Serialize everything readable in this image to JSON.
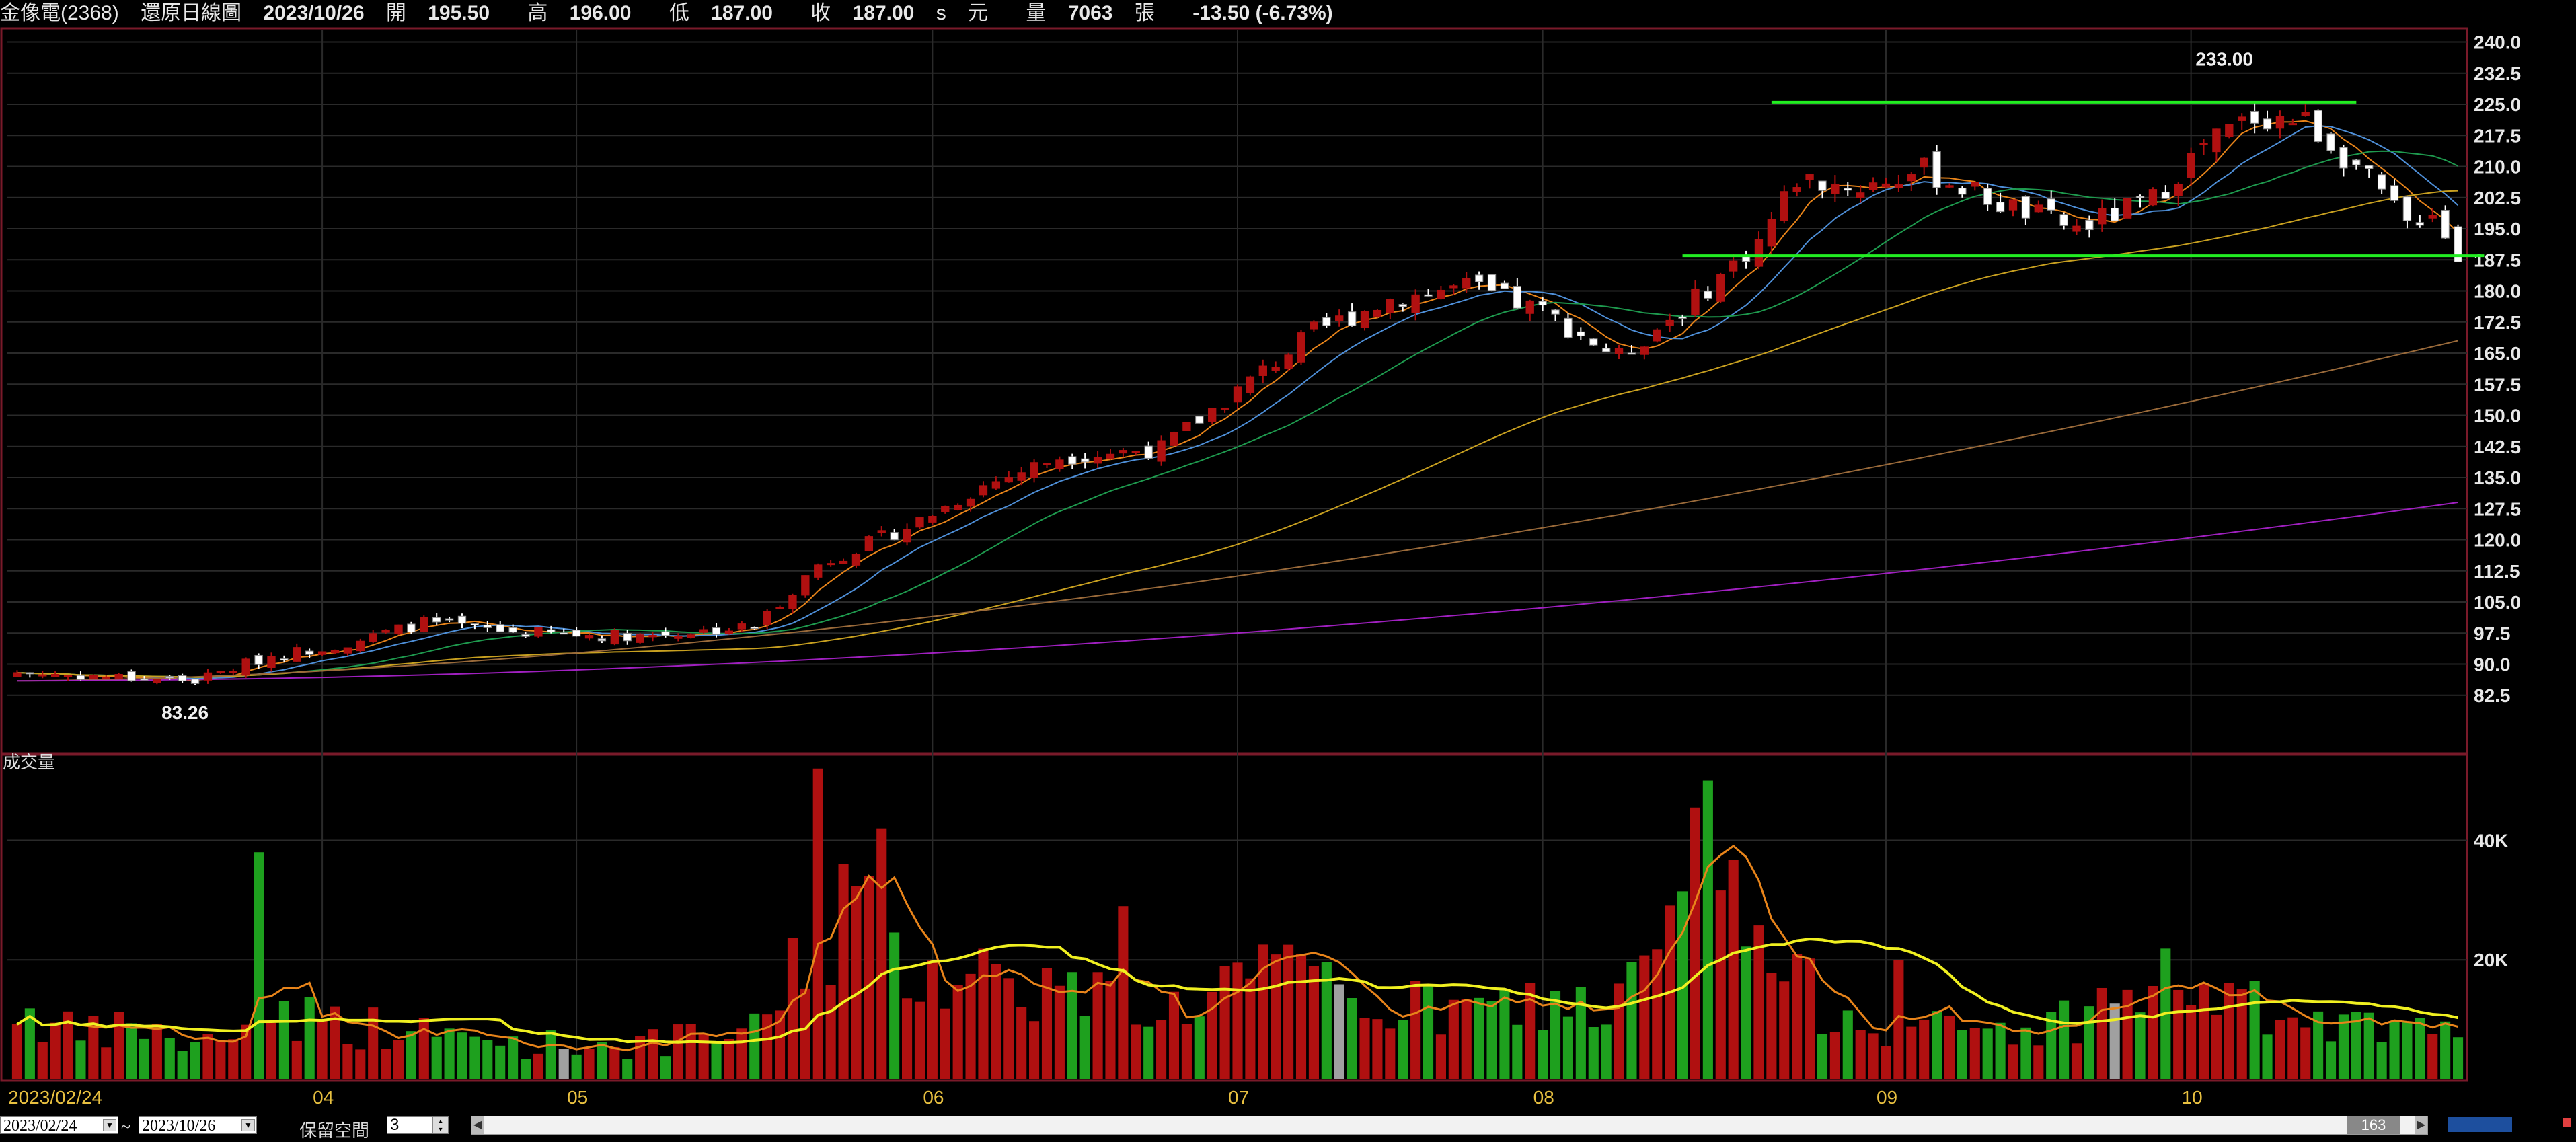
{
  "header": {
    "stock": "金像電(2368)",
    "chart_name": "還原日線圖",
    "date": "2023/10/26",
    "open_label": "開",
    "open": "195.50",
    "high_label": "高",
    "high": "196.00",
    "low_label": "低",
    "low": "187.00",
    "close_label": "收",
    "close": "187.00",
    "close_flag": "s",
    "unit": "元",
    "volume_label": "量",
    "volume": "7063",
    "volume_unit": "張",
    "change": "-13.50 (-6.73%)"
  },
  "colors": {
    "up": "#b01010",
    "down": "#ffffff",
    "vol_up": "#b01010",
    "vol_down": "#1ea01e",
    "vol_flat": "#a0a0a0",
    "grid": "#2a2a2a",
    "frame": "#7a1a2a",
    "ma5": "#e8841a",
    "ma10": "#4e8fd8",
    "ma20": "#1e9a4e",
    "ma60": "#c8a020",
    "ma120": "#9a6a3a",
    "ma240": "#a020c0",
    "support": "#22ee22",
    "vol_ma5": "#e8841a",
    "vol_ma20": "#f0f020"
  },
  "chart_data": {
    "type": "candlestick",
    "price_axis": {
      "ticks": [
        82.5,
        90.0,
        97.5,
        105.0,
        112.5,
        120.0,
        127.5,
        135.0,
        142.5,
        150.0,
        157.5,
        165.0,
        172.5,
        180.0,
        187.5,
        195.0,
        202.5,
        210.0,
        217.5,
        225.0,
        232.5,
        240.0
      ],
      "range": [
        75,
        243
      ]
    },
    "volume_axis": {
      "ticks": [
        "20K",
        "40K"
      ],
      "values": [
        20000,
        40000
      ],
      "range": [
        0,
        54000
      ]
    },
    "x_labels": [
      "2023/02/24",
      "04",
      "05",
      "06",
      "07",
      "08",
      "09",
      "10"
    ],
    "x_label_index": [
      0,
      24,
      44,
      72,
      96,
      120,
      147,
      171
    ],
    "start": "2023/02/24",
    "end": "2023/10/26",
    "high_annotation": {
      "label": "233.00",
      "index": 174
    },
    "low_annotation": {
      "label": "83.26",
      "index": 14
    },
    "resistance_level": 225.5,
    "support_level": 188.5,
    "volume_title": "成交量",
    "close_waypoints": [
      [
        0,
        88
      ],
      [
        14,
        86
      ],
      [
        20,
        92
      ],
      [
        26,
        95
      ],
      [
        32,
        100
      ],
      [
        38,
        98
      ],
      [
        44,
        97
      ],
      [
        50,
        97
      ],
      [
        58,
        99
      ],
      [
        63,
        114
      ],
      [
        70,
        123
      ],
      [
        76,
        133
      ],
      [
        82,
        140
      ],
      [
        90,
        142
      ],
      [
        96,
        156
      ],
      [
        102,
        170
      ],
      [
        108,
        178
      ],
      [
        114,
        181
      ],
      [
        120,
        175
      ],
      [
        126,
        164
      ],
      [
        132,
        178
      ],
      [
        137,
        192
      ],
      [
        140,
        207
      ],
      [
        145,
        205
      ],
      [
        150,
        209
      ],
      [
        156,
        201
      ],
      [
        162,
        195
      ],
      [
        168,
        202
      ],
      [
        172,
        215
      ],
      [
        176,
        222
      ],
      [
        180,
        221
      ],
      [
        184,
        210
      ],
      [
        188,
        196
      ],
      [
        190,
        200
      ],
      [
        192,
        187
      ]
    ],
    "volume_waypoints": [
      [
        0,
        12
      ],
      [
        5,
        7
      ],
      [
        10,
        9
      ],
      [
        14,
        5
      ],
      [
        20,
        12
      ],
      [
        24,
        10
      ],
      [
        30,
        8
      ],
      [
        40,
        6
      ],
      [
        50,
        6
      ],
      [
        58,
        8
      ],
      [
        62,
        22
      ],
      [
        66,
        28
      ],
      [
        70,
        20
      ],
      [
        76,
        18
      ],
      [
        82,
        15
      ],
      [
        90,
        11
      ],
      [
        96,
        17
      ],
      [
        102,
        16
      ],
      [
        108,
        12
      ],
      [
        114,
        11
      ],
      [
        120,
        13
      ],
      [
        126,
        12
      ],
      [
        131,
        28
      ],
      [
        133,
        46
      ],
      [
        136,
        24
      ],
      [
        140,
        15
      ],
      [
        146,
        10
      ],
      [
        152,
        8
      ],
      [
        160,
        9
      ],
      [
        166,
        14
      ],
      [
        170,
        17
      ],
      [
        174,
        13
      ],
      [
        180,
        9
      ],
      [
        186,
        8
      ],
      [
        192,
        7
      ]
    ],
    "volume_spikes": [
      [
        19,
        38
      ],
      [
        63,
        52
      ],
      [
        65,
        36
      ],
      [
        68,
        42
      ],
      [
        87,
        29
      ],
      [
        133,
        50
      ],
      [
        148,
        20
      ]
    ],
    "n_bars": 193,
    "last_bar": {
      "open": 195.5,
      "high": 196.0,
      "low": 187.0,
      "close": 187.0,
      "volume": 7063
    },
    "ma_periods": [
      5,
      10,
      20,
      60,
      120,
      240
    ],
    "vol_ma_periods": [
      5,
      20
    ],
    "grid": true
  },
  "bottombar": {
    "start_date": "2023/02/24",
    "end_date": "2023/10/26",
    "tilde": "~",
    "keep_space_label": "保留空間",
    "keep_space_value": "3",
    "scroll_value": "163"
  }
}
